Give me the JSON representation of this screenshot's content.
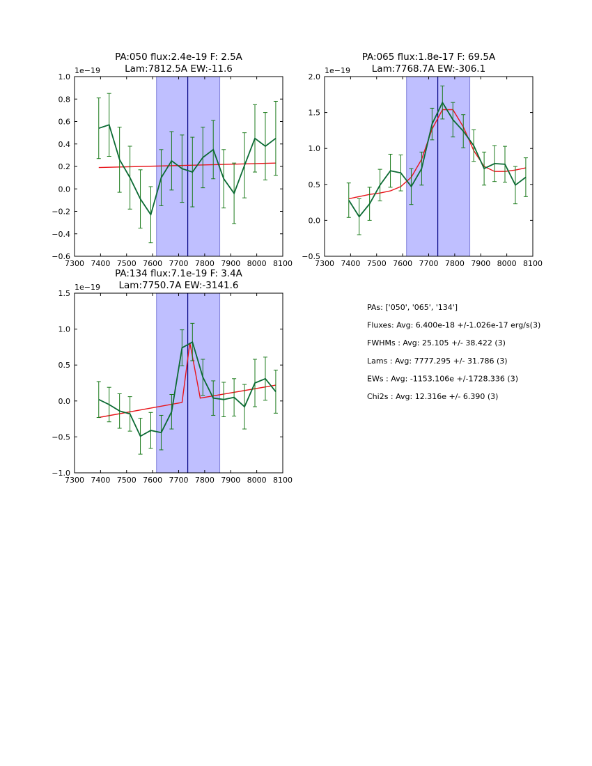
{
  "chart_data": [
    {
      "type": "line",
      "title_lines": [
        "PA:050 flux:2.4e-19 F: 2.5A",
        "Lam:7812.5A EW:-11.6"
      ],
      "multiplier": "1e−19",
      "xlim": [
        7300,
        8100
      ],
      "ylim": [
        -0.6,
        1.0
      ],
      "xticks": [
        7300,
        7400,
        7500,
        7600,
        7700,
        7800,
        7900,
        8000,
        8100
      ],
      "yticks": [
        -0.6,
        -0.4,
        -0.2,
        0.0,
        0.2,
        0.4,
        0.6,
        0.8,
        1.0
      ],
      "ytick_labels": [
        "−0.6",
        "−0.4",
        "−0.2",
        "0.0",
        "0.2",
        "0.4",
        "0.6",
        "0.8",
        "1.0"
      ],
      "band": [
        7615,
        7858
      ],
      "vline": 7735,
      "data": {
        "x": [
          7393,
          7433,
          7473,
          7513,
          7553,
          7593,
          7633,
          7673,
          7713,
          7753,
          7793,
          7833,
          7873,
          7913,
          7953,
          7993,
          8033,
          8073
        ],
        "y": [
          0.54,
          0.57,
          0.26,
          0.1,
          -0.09,
          -0.23,
          0.1,
          0.25,
          0.18,
          0.15,
          0.28,
          0.35,
          0.09,
          -0.04,
          0.21,
          0.45,
          0.38,
          0.45
        ],
        "err": [
          0.27,
          0.28,
          0.29,
          0.28,
          0.26,
          0.25,
          0.25,
          0.26,
          0.3,
          0.31,
          0.27,
          0.26,
          0.26,
          0.27,
          0.29,
          0.3,
          0.3,
          0.33
        ]
      },
      "model": {
        "x": [
          7393,
          8073
        ],
        "y": [
          0.19,
          0.23
        ]
      }
    },
    {
      "type": "line",
      "title_lines": [
        "PA:065 flux:1.8e-17 F: 69.5A",
        "Lam:7768.7A EW:-306.1"
      ],
      "multiplier": "1e−19",
      "xlim": [
        7300,
        8100
      ],
      "ylim": [
        -0.5,
        2.0
      ],
      "xticks": [
        7300,
        7400,
        7500,
        7600,
        7700,
        7800,
        7900,
        8000,
        8100
      ],
      "yticks": [
        -0.5,
        0.0,
        0.5,
        1.0,
        1.5,
        2.0
      ],
      "ytick_labels": [
        "−0.5",
        "0.0",
        "0.5",
        "1.0",
        "1.5",
        "2.0"
      ],
      "band": [
        7615,
        7858
      ],
      "vline": 7735,
      "data": {
        "x": [
          7393,
          7433,
          7473,
          7513,
          7553,
          7593,
          7633,
          7673,
          7713,
          7753,
          7793,
          7833,
          7873,
          7913,
          7953,
          7993,
          8033,
          8073
        ],
        "y": [
          0.28,
          0.05,
          0.23,
          0.49,
          0.69,
          0.66,
          0.47,
          0.72,
          1.34,
          1.64,
          1.4,
          1.24,
          1.04,
          0.72,
          0.79,
          0.78,
          0.49,
          0.6
        ],
        "err": [
          0.24,
          0.25,
          0.23,
          0.22,
          0.23,
          0.25,
          0.25,
          0.23,
          0.22,
          0.23,
          0.24,
          0.23,
          0.22,
          0.23,
          0.25,
          0.25,
          0.26,
          0.27
        ]
      },
      "model": {
        "x": [
          7393,
          7433,
          7473,
          7513,
          7553,
          7593,
          7633,
          7673,
          7713,
          7753,
          7793,
          7833,
          7873,
          7913,
          7953,
          7993,
          8033,
          8073
        ],
        "y": [
          0.3,
          0.33,
          0.36,
          0.38,
          0.41,
          0.47,
          0.6,
          0.85,
          1.27,
          1.54,
          1.54,
          1.3,
          0.97,
          0.75,
          0.68,
          0.68,
          0.7,
          0.73
        ]
      }
    },
    {
      "type": "line",
      "title_lines": [
        "PA:134 flux:7.1e-19 F: 3.4A",
        "Lam:7750.7A EW:-3141.6"
      ],
      "multiplier": "1e−19",
      "xlim": [
        7300,
        8100
      ],
      "ylim": [
        -1.0,
        1.5
      ],
      "xticks": [
        7300,
        7400,
        7500,
        7600,
        7700,
        7800,
        7900,
        8000,
        8100
      ],
      "yticks": [
        -1.0,
        -0.5,
        0.0,
        0.5,
        1.0,
        1.5
      ],
      "ytick_labels": [
        "−1.0",
        "−0.5",
        "0.0",
        "0.5",
        "1.0",
        "1.5"
      ],
      "band": [
        7615,
        7858
      ],
      "vline": 7735,
      "data": {
        "x": [
          7393,
          7433,
          7473,
          7513,
          7553,
          7593,
          7633,
          7673,
          7713,
          7753,
          7793,
          7833,
          7873,
          7913,
          7953,
          7993,
          8033,
          8073
        ],
        "y": [
          0.02,
          -0.05,
          -0.14,
          -0.18,
          -0.49,
          -0.41,
          -0.44,
          -0.15,
          0.74,
          0.82,
          0.33,
          0.04,
          0.02,
          0.05,
          -0.08,
          0.25,
          0.31,
          0.13
        ],
        "err": [
          0.25,
          0.24,
          0.24,
          0.24,
          0.25,
          0.25,
          0.24,
          0.24,
          0.25,
          0.26,
          0.25,
          0.24,
          0.24,
          0.26,
          0.31,
          0.33,
          0.3,
          0.3
        ]
      },
      "model": {
        "x": [
          7393,
          7713,
          7743,
          7783,
          8073
        ],
        "y": [
          -0.23,
          -0.02,
          0.81,
          0.04,
          0.22
        ]
      }
    }
  ],
  "colors": {
    "data_line": "#0b6a33",
    "error_bars": "#1a7a1a",
    "model_line": "#e8141a",
    "band_fill": "#bfbfff",
    "band_edge": "#7f7fd8",
    "vline": "#000080"
  },
  "notes": {
    "pas": "PAs: ['050', '065', '134']",
    "fluxes": "Fluxes: Avg: 6.400e-18 +/-1.026e-17 erg/s(3)",
    "fwhms": "FWHMs : Avg:   25.105 +/-   38.422 (3)",
    "lams": "Lams  : Avg: 7777.295 +/-   31.786 (3)",
    "ews": "EWs   : Avg: -1153.106e +/-1728.336 (3)",
    "chi2s": "Chi2s   : Avg:   12.316e +/-   6.390 (3)"
  }
}
